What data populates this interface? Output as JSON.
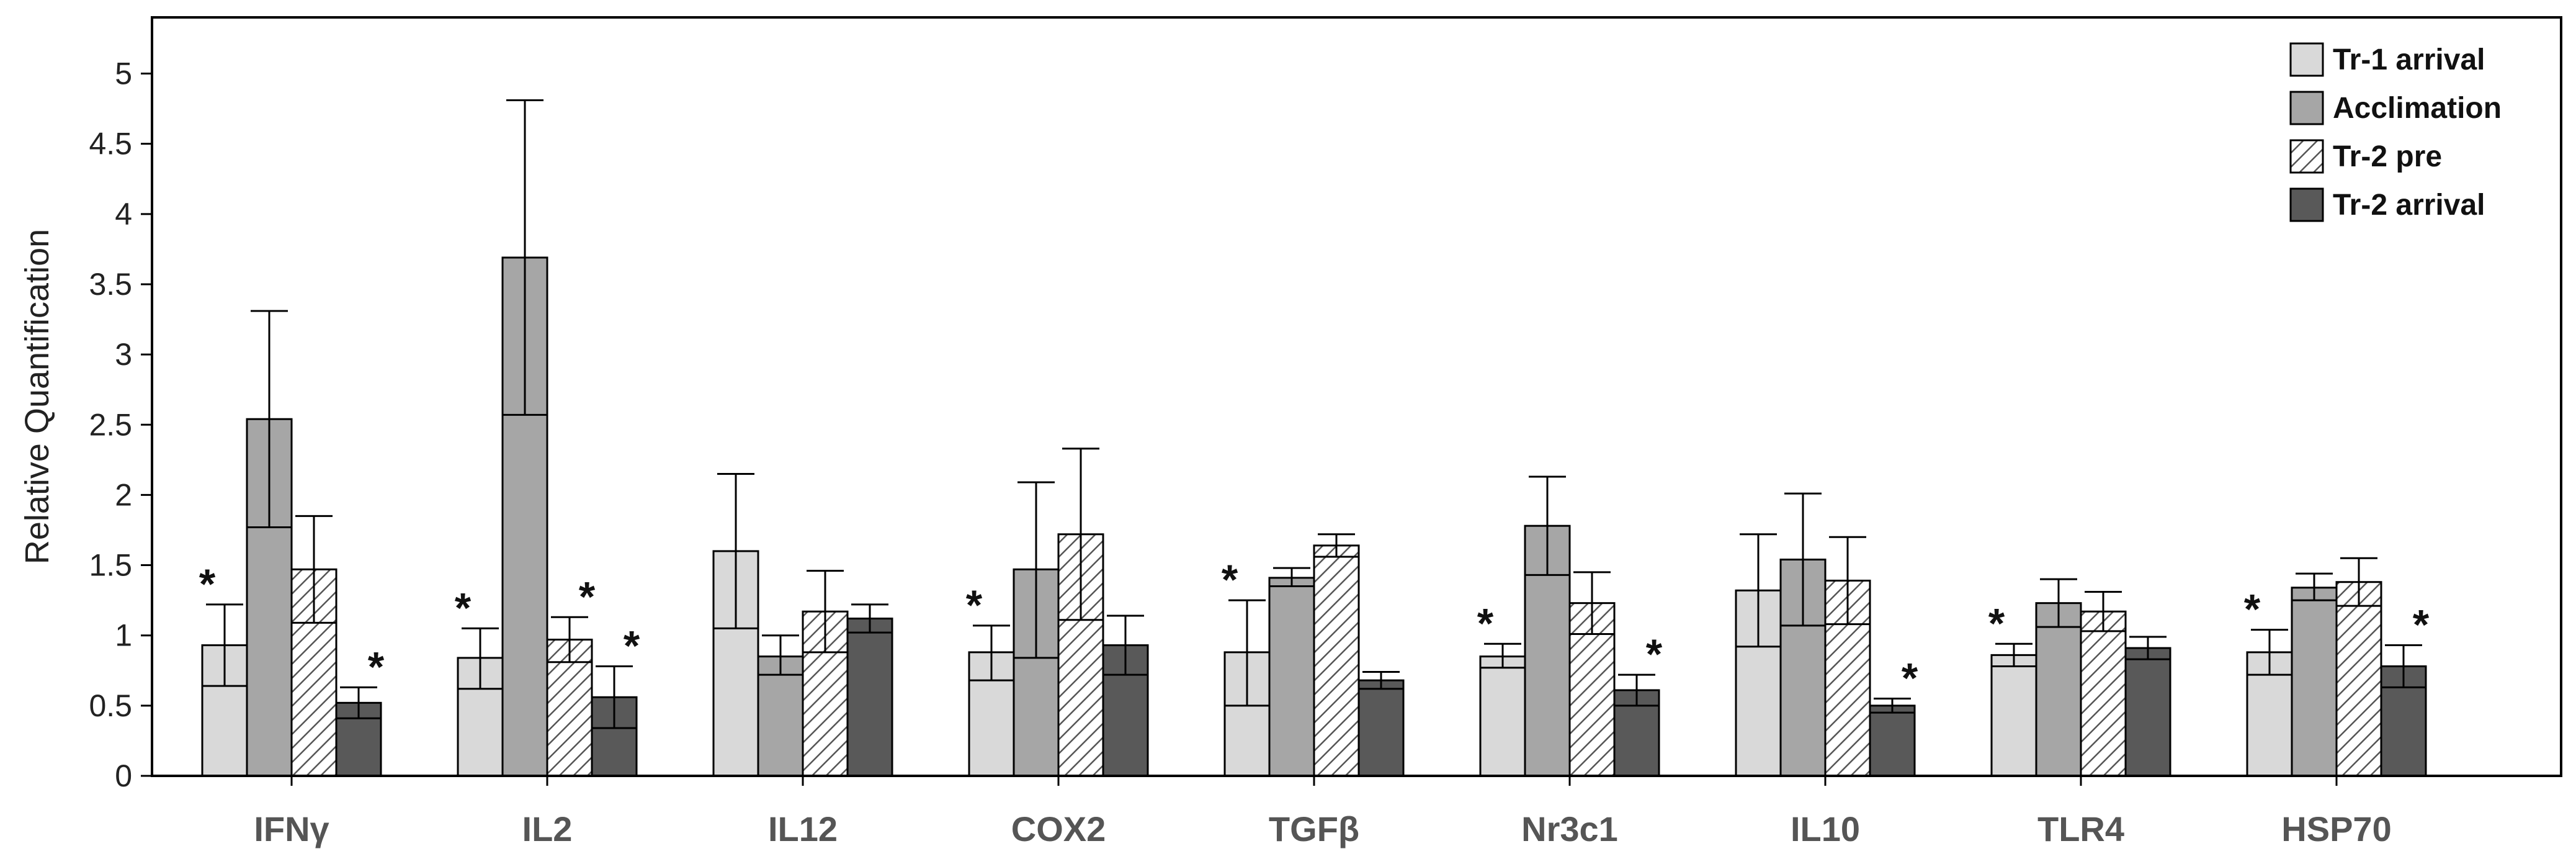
{
  "chart_data": {
    "type": "bar",
    "title": "",
    "xlabel": "",
    "ylabel": "Relative Quantification",
    "ylim": [
      0,
      5.4
    ],
    "yticks": [
      0,
      0.5,
      1,
      1.5,
      2,
      2.5,
      3,
      3.5,
      4,
      4.5,
      5
    ],
    "categories": [
      "IFNγ",
      "IL2",
      "IL12",
      "COX2",
      "TGFβ",
      "Nr3c1",
      "IL10",
      "TLR4",
      "HSP70"
    ],
    "significance_marker": "*",
    "legend_position": "top-right",
    "series": [
      {
        "name": "Tr-1 arrival",
        "fill": "solid",
        "color": "#d9d9d9",
        "values": [
          0.93,
          0.84,
          1.6,
          0.88,
          0.88,
          0.85,
          1.32,
          0.86,
          0.88
        ],
        "error_upper": [
          1.22,
          1.05,
          2.15,
          1.07,
          1.25,
          0.94,
          1.72,
          0.94,
          1.04
        ],
        "error_lower": [
          0.64,
          0.62,
          1.05,
          0.68,
          0.5,
          0.77,
          0.92,
          0.78,
          0.72
        ],
        "significant": [
          true,
          true,
          false,
          true,
          true,
          true,
          false,
          true,
          true
        ]
      },
      {
        "name": "Acclimation",
        "fill": "solid",
        "color": "#a6a6a6",
        "values": [
          2.54,
          3.69,
          0.85,
          1.47,
          1.41,
          1.78,
          1.54,
          1.23,
          1.34
        ],
        "error_upper": [
          3.31,
          4.81,
          1.0,
          2.09,
          1.48,
          2.13,
          2.01,
          1.4,
          1.44
        ],
        "error_lower": [
          1.77,
          2.57,
          0.72,
          0.84,
          1.35,
          1.43,
          1.07,
          1.06,
          1.25
        ],
        "significant": [
          false,
          false,
          false,
          false,
          false,
          false,
          false,
          false,
          false
        ]
      },
      {
        "name": "Tr-2 pre",
        "fill": "hatched",
        "color": "#ffffff",
        "values": [
          1.47,
          0.97,
          1.17,
          1.72,
          1.64,
          1.23,
          1.39,
          1.17,
          1.38
        ],
        "error_upper": [
          1.85,
          1.13,
          1.46,
          2.33,
          1.72,
          1.45,
          1.7,
          1.31,
          1.55
        ],
        "error_lower": [
          1.09,
          0.81,
          0.88,
          1.11,
          1.56,
          1.01,
          1.08,
          1.03,
          1.21
        ],
        "significant": [
          false,
          true,
          false,
          false,
          false,
          false,
          false,
          false,
          false
        ]
      },
      {
        "name": "Tr-2 arrival",
        "fill": "solid",
        "color": "#595959",
        "values": [
          0.52,
          0.56,
          1.12,
          0.93,
          0.68,
          0.61,
          0.5,
          0.91,
          0.78
        ],
        "error_upper": [
          0.63,
          0.78,
          1.22,
          1.14,
          0.74,
          0.72,
          0.55,
          0.99,
          0.93
        ],
        "error_lower": [
          0.41,
          0.34,
          1.02,
          0.72,
          0.62,
          0.5,
          0.45,
          0.83,
          0.63
        ],
        "significant": [
          true,
          true,
          false,
          false,
          false,
          true,
          true,
          false,
          true
        ]
      }
    ]
  }
}
